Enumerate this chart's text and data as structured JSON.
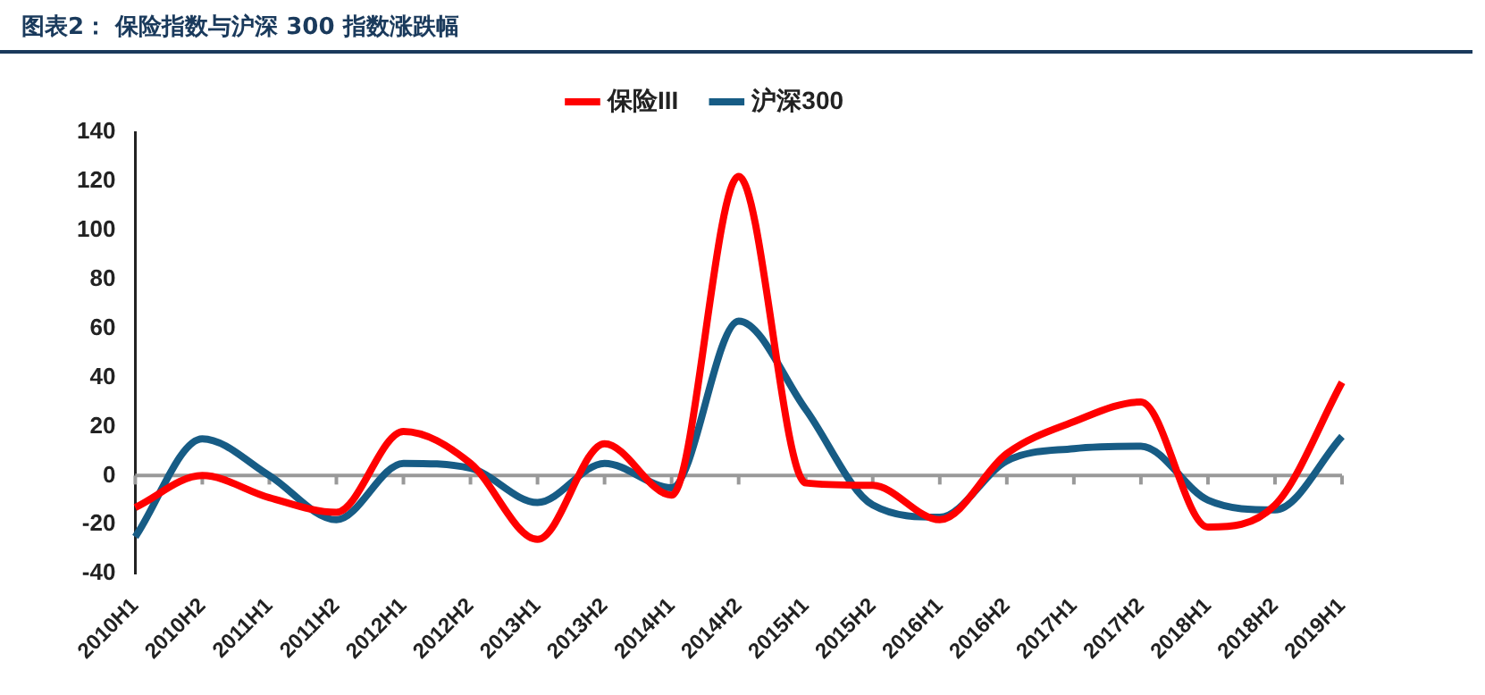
{
  "chart_data": {
    "type": "line",
    "title": "图表2：  保险指数与沪深 300 指数涨跌幅",
    "categories": [
      "2010H1",
      "2010H2",
      "2011H1",
      "2011H2",
      "2012H1",
      "2012H2",
      "2013H1",
      "2013H2",
      "2014H1",
      "2014H2",
      "2015H1",
      "2015H2",
      "2016H1",
      "2016H2",
      "2017H1",
      "2017H2",
      "2018H1",
      "2018H2",
      "2019H1"
    ],
    "series": [
      {
        "name": "保险III",
        "color": "#ff0000",
        "values": [
          -13,
          0,
          -9,
          -15,
          18,
          5,
          -26,
          13,
          -8,
          122,
          -3,
          -4,
          -18,
          9,
          22,
          30,
          -21,
          -12,
          38
        ]
      },
      {
        "name": "沪深300",
        "color": "#175c85",
        "values": [
          -25,
          15,
          0,
          -18,
          5,
          3,
          -11,
          5,
          -5,
          63,
          27,
          -12,
          -17,
          6,
          11,
          12,
          -10,
          -14,
          16
        ]
      }
    ],
    "ylim": [
      -40,
      140
    ],
    "yticks": [
      -40,
      -20,
      0,
      20,
      40,
      60,
      80,
      100,
      120,
      140
    ],
    "ref_lines": [
      {
        "axis": "y",
        "value": 0,
        "color": "#999999"
      }
    ],
    "legend": "top",
    "marker": "none",
    "line_style": "solid"
  }
}
